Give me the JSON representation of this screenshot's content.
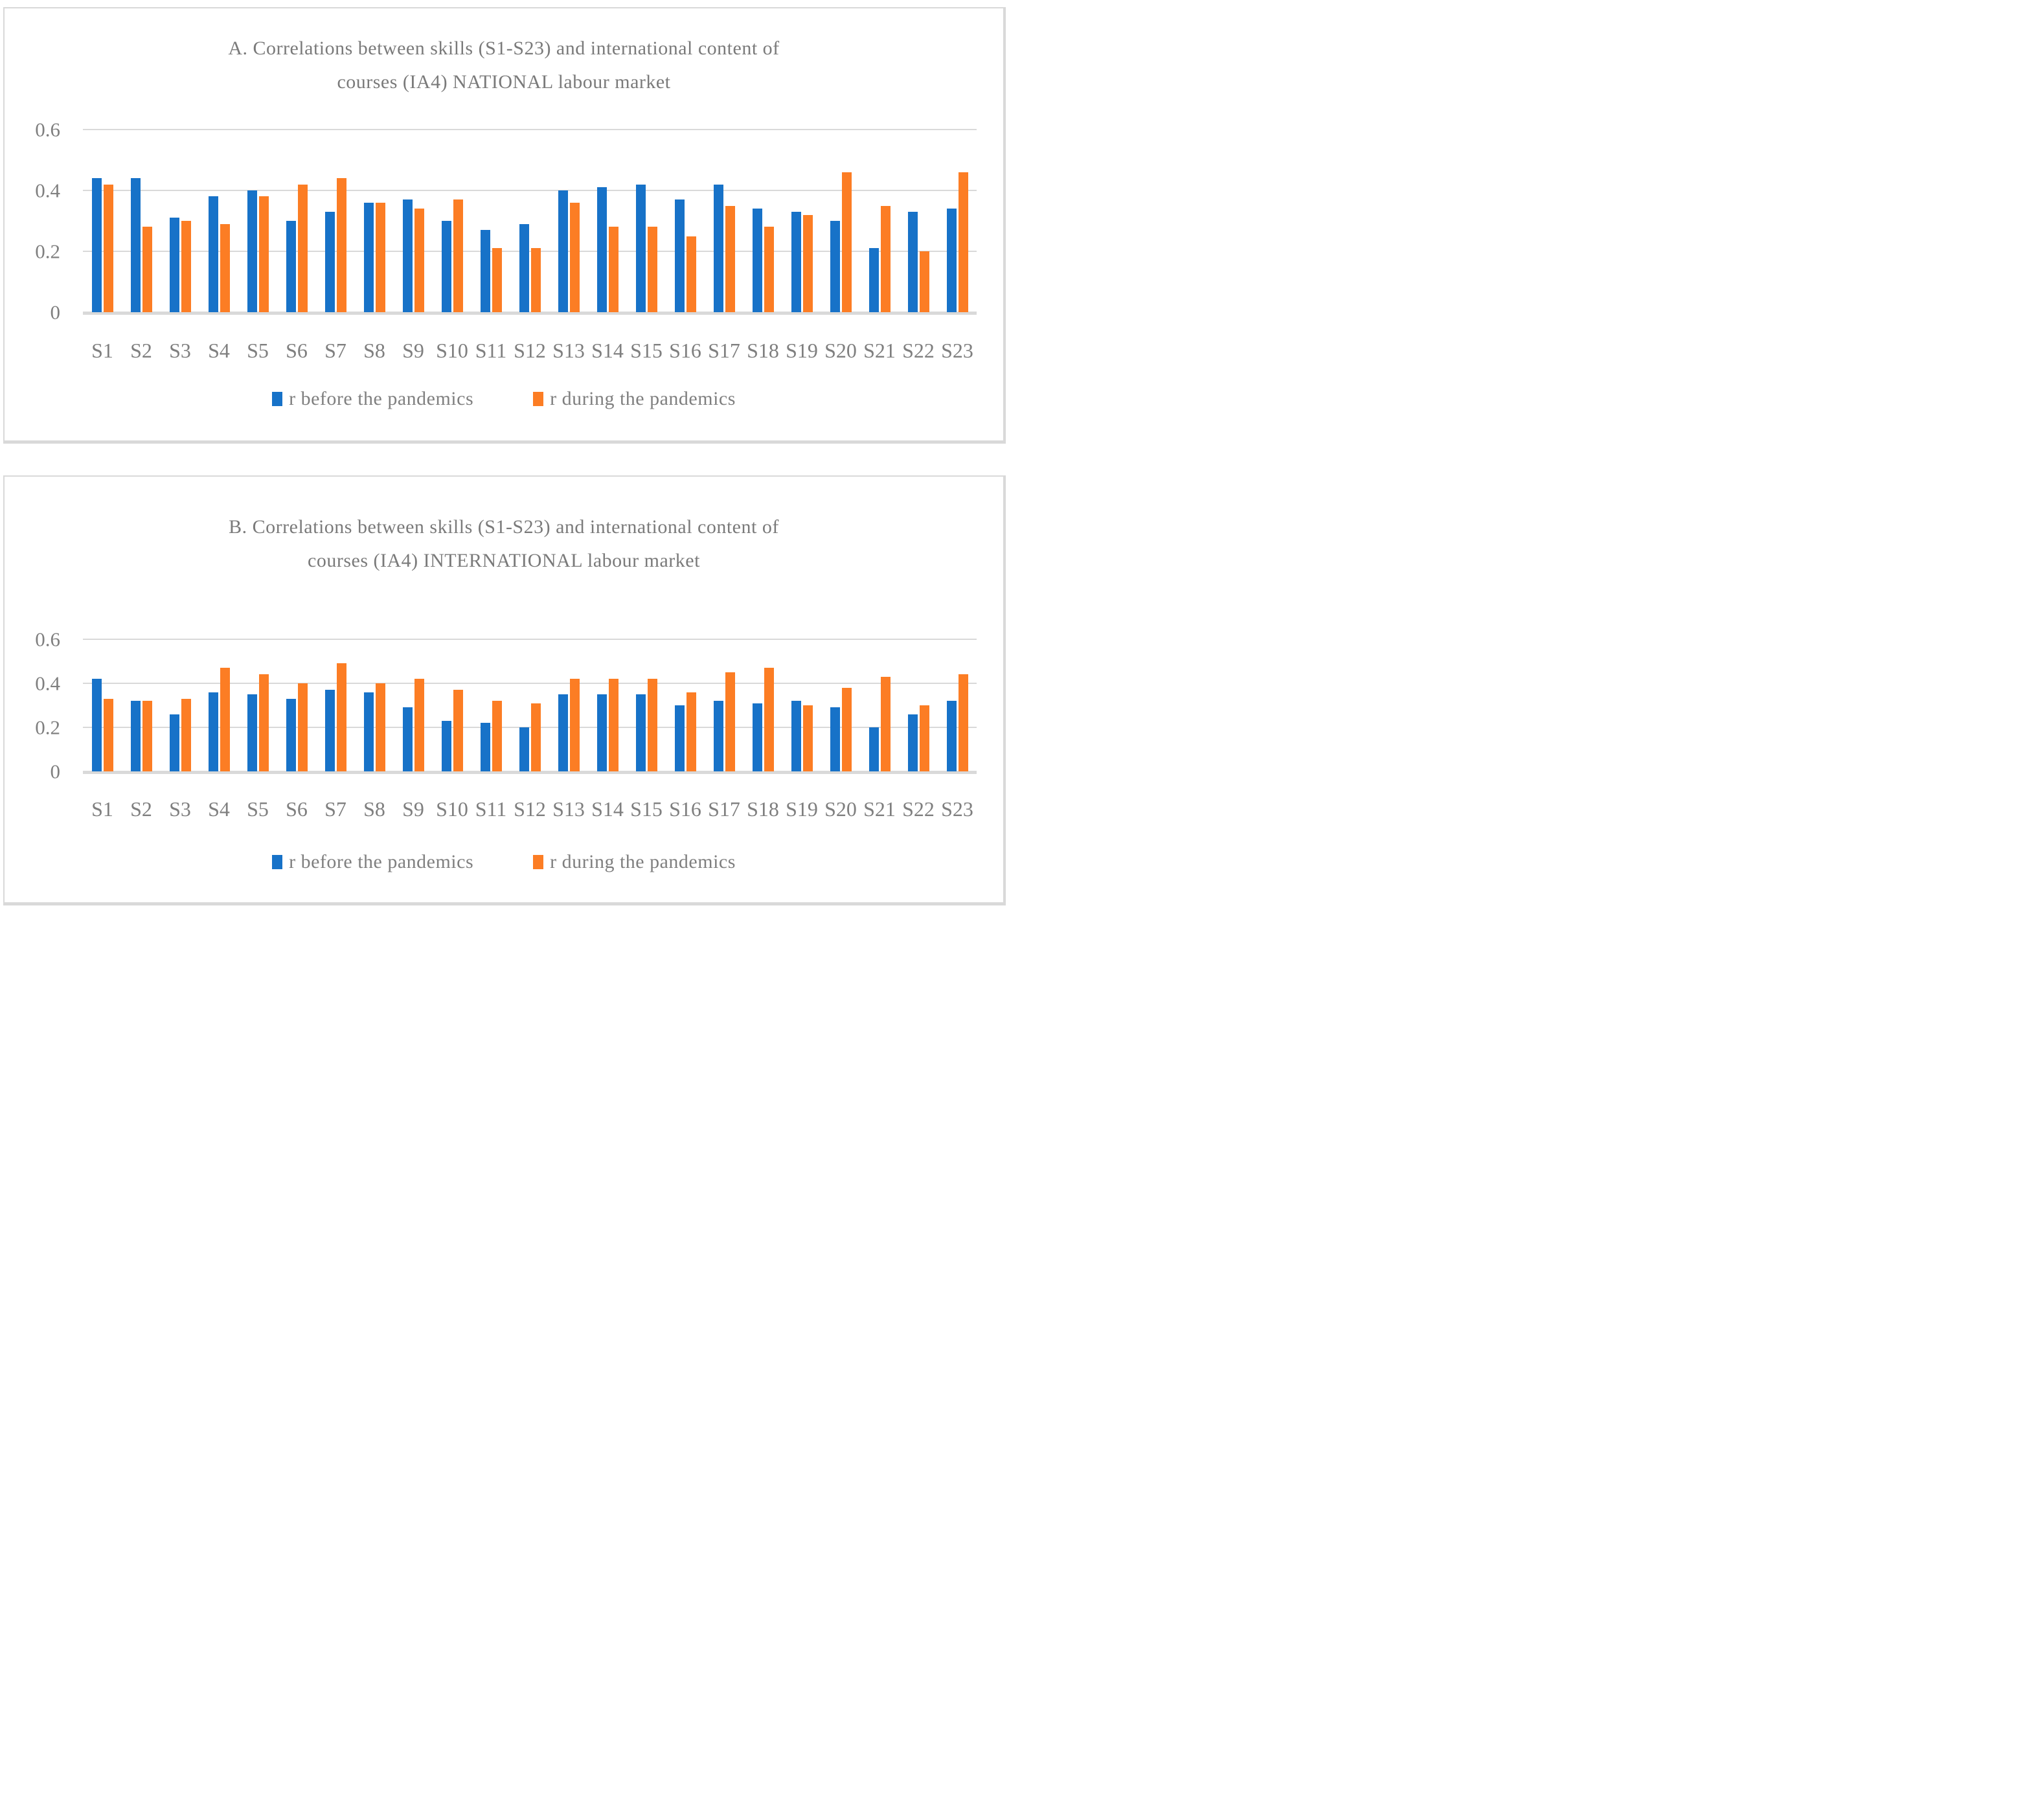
{
  "figure": {
    "background": "#ffffff",
    "border_color": "#d9d9d9",
    "grid_color": "#d9d9d9",
    "text_color": "#7f7f7f",
    "series_colors": {
      "before": "#1772c8",
      "during": "#fc7d24"
    }
  },
  "chart_data": [
    {
      "id": "A",
      "type": "bar",
      "title_line1": "A. Correlations between skills (S1-S23) and international content of",
      "title_line2": "courses (IA4) NATIONAL labour market",
      "categories": [
        "S1",
        "S2",
        "S3",
        "S4",
        "S5",
        "S6",
        "S7",
        "S8",
        "S9",
        "S10",
        "S11",
        "S12",
        "S13",
        "S14",
        "S15",
        "S16",
        "S17",
        "S18",
        "S19",
        "S20",
        "S21",
        "S22",
        "S23"
      ],
      "series": [
        {
          "name": "r before the pandemics",
          "color": "#1772c8",
          "values": [
            0.44,
            0.44,
            0.31,
            0.38,
            0.4,
            0.3,
            0.33,
            0.36,
            0.37,
            0.3,
            0.27,
            0.29,
            0.4,
            0.41,
            0.42,
            0.37,
            0.42,
            0.34,
            0.33,
            0.3,
            0.21,
            0.33,
            0.34
          ]
        },
        {
          "name": "r during the pandemics",
          "color": "#fc7d24",
          "values": [
            0.42,
            0.28,
            0.3,
            0.29,
            0.38,
            0.42,
            0.44,
            0.36,
            0.34,
            0.37,
            0.21,
            0.21,
            0.36,
            0.28,
            0.28,
            0.25,
            0.35,
            0.28,
            0.32,
            0.46,
            0.35,
            0.2,
            0.46
          ]
        }
      ],
      "ylim": [
        0,
        0.6
      ],
      "yticks": [
        {
          "label": "0.6",
          "value": 0.6
        },
        {
          "label": "0.4",
          "value": 0.4
        },
        {
          "label": "0.2",
          "value": 0.2
        },
        {
          "label": "0",
          "value": 0
        }
      ],
      "grid": true,
      "legend_position": "bottom"
    },
    {
      "id": "B",
      "type": "bar",
      "title_line1": "B. Correlations between skills (S1-S23) and international content of",
      "title_line2": "courses (IA4) INTERNATIONAL labour market",
      "categories": [
        "S1",
        "S2",
        "S3",
        "S4",
        "S5",
        "S6",
        "S7",
        "S8",
        "S9",
        "S10",
        "S11",
        "S12",
        "S13",
        "S14",
        "S15",
        "S16",
        "S17",
        "S18",
        "S19",
        "S20",
        "S21",
        "S22",
        "S23"
      ],
      "series": [
        {
          "name": "r before the pandemics",
          "color": "#1772c8",
          "values": [
            0.42,
            0.32,
            0.26,
            0.36,
            0.35,
            0.33,
            0.37,
            0.36,
            0.29,
            0.23,
            0.22,
            0.2,
            0.35,
            0.35,
            0.35,
            0.3,
            0.32,
            0.31,
            0.32,
            0.29,
            0.2,
            0.26,
            0.32
          ]
        },
        {
          "name": "r during the pandemics",
          "color": "#fc7d24",
          "values": [
            0.33,
            0.32,
            0.33,
            0.47,
            0.44,
            0.4,
            0.49,
            0.4,
            0.42,
            0.37,
            0.32,
            0.31,
            0.42,
            0.42,
            0.42,
            0.36,
            0.45,
            0.47,
            0.3,
            0.38,
            0.43,
            0.3,
            0.44
          ]
        }
      ],
      "ylim": [
        0,
        0.6
      ],
      "yticks": [
        {
          "label": "0.6",
          "value": 0.6
        },
        {
          "label": "0.4",
          "value": 0.4
        },
        {
          "label": "0.2",
          "value": 0.2
        },
        {
          "label": "0",
          "value": 0
        }
      ],
      "grid": true,
      "legend_position": "bottom"
    }
  ]
}
